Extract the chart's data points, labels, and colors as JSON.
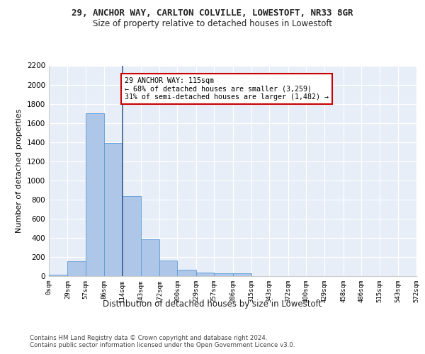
{
  "title_line1": "29, ANCHOR WAY, CARLTON COLVILLE, LOWESTOFT, NR33 8GR",
  "title_line2": "Size of property relative to detached houses in Lowestoft",
  "xlabel": "Distribution of detached houses by size in Lowestoft",
  "ylabel": "Number of detached properties",
  "footer_line1": "Contains HM Land Registry data © Crown copyright and database right 2024.",
  "footer_line2": "Contains public sector information licensed under the Open Government Licence v3.0.",
  "bin_labels": [
    "0sqm",
    "29sqm",
    "57sqm",
    "86sqm",
    "114sqm",
    "143sqm",
    "172sqm",
    "200sqm",
    "229sqm",
    "257sqm",
    "286sqm",
    "315sqm",
    "343sqm",
    "372sqm",
    "400sqm",
    "429sqm",
    "458sqm",
    "486sqm",
    "515sqm",
    "543sqm",
    "572sqm"
  ],
  "bin_edges": [
    0,
    29,
    57,
    86,
    114,
    143,
    172,
    200,
    229,
    257,
    286,
    315,
    343,
    372,
    400,
    429,
    458,
    486,
    515,
    543,
    572
  ],
  "bar_heights": [
    15,
    155,
    1700,
    1390,
    835,
    385,
    165,
    65,
    35,
    28,
    28,
    0,
    0,
    0,
    0,
    0,
    0,
    0,
    0,
    0
  ],
  "bar_color": "#aec6e8",
  "bar_edge_color": "#5b9bd5",
  "vline_x": 115,
  "vline_color": "#3a5f8a",
  "annotation_text": "29 ANCHOR WAY: 115sqm\n← 68% of detached houses are smaller (3,259)\n31% of semi-detached houses are larger (1,482) →",
  "annotation_box_color": "#ffffff",
  "annotation_box_edge": "#cc0000",
  "ylim": [
    0,
    2200
  ],
  "yticks": [
    0,
    200,
    400,
    600,
    800,
    1000,
    1200,
    1400,
    1600,
    1800,
    2000,
    2200
  ],
  "fig_bg_color": "#ffffff",
  "plot_bg_color": "#e8eef8"
}
